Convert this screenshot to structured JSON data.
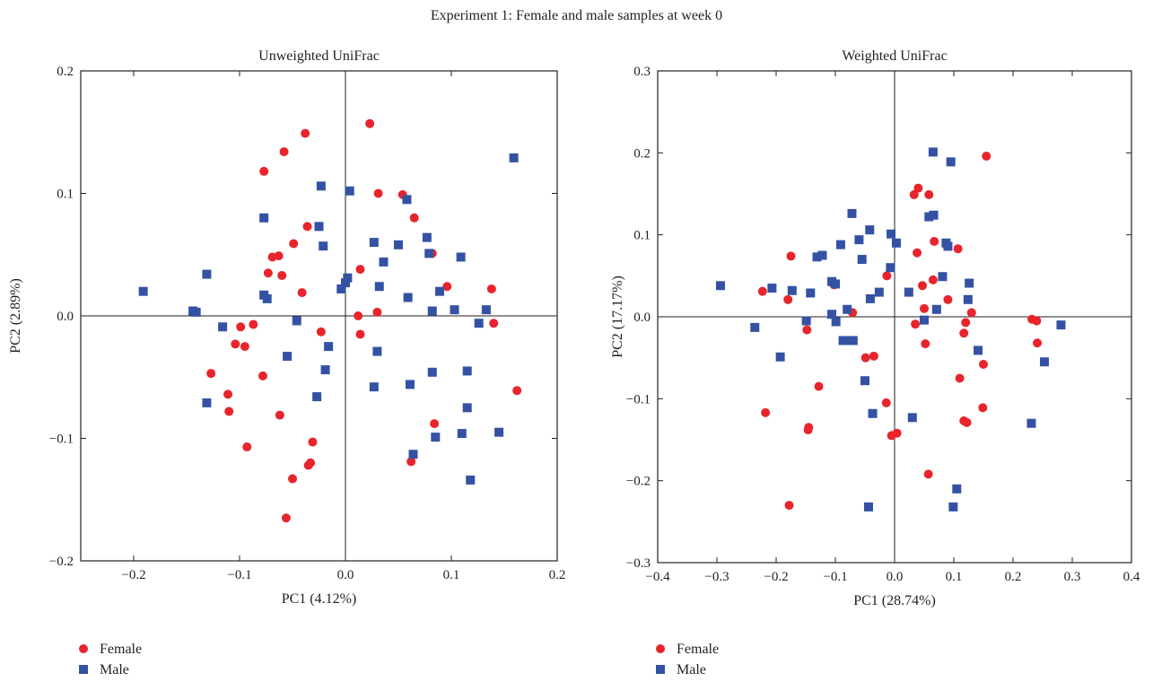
{
  "figure": {
    "title": "Experiment 1: Female and male samples at week 0"
  },
  "colors": {
    "female": "#e8242c",
    "male": "#3452a4"
  },
  "chart_data": [
    {
      "type": "scatter",
      "title": "Unweighted UniFrac",
      "xlabel": "PC1 (4.12%)",
      "ylabel": "PC2 (2.89%)",
      "xlim": [
        -0.25,
        0.2
      ],
      "ylim": [
        -0.2,
        0.2
      ],
      "xticks": [
        -0.2,
        -0.1,
        0.0,
        0.1,
        0.2
      ],
      "yticks": [
        -0.2,
        -0.1,
        0.0,
        0.1,
        0.2
      ],
      "xtick_labels": [
        "−0.2",
        "−0.1",
        "0.0",
        "0.1",
        "0.2"
      ],
      "ytick_labels": [
        "−0.2",
        "−0.1",
        "0.0",
        "0.1",
        "0.2"
      ],
      "legend": [
        "Female",
        "Male"
      ],
      "legend_position": "bottom-left, below plot",
      "series": [
        {
          "name": "Female",
          "marker": "circle",
          "points": [
            [
              0.023,
              0.157
            ],
            [
              -0.038,
              0.149
            ],
            [
              -0.058,
              0.134
            ],
            [
              -0.077,
              0.118
            ],
            [
              0.031,
              0.1
            ],
            [
              0.054,
              0.099
            ],
            [
              0.065,
              0.08
            ],
            [
              -0.036,
              0.073
            ],
            [
              -0.049,
              0.059
            ],
            [
              -0.069,
              0.048
            ],
            [
              -0.063,
              0.049
            ],
            [
              0.082,
              0.051
            ],
            [
              0.014,
              0.038
            ],
            [
              -0.073,
              0.035
            ],
            [
              -0.06,
              0.033
            ],
            [
              0.138,
              0.022
            ],
            [
              0.096,
              0.024
            ],
            [
              -0.041,
              0.019
            ],
            [
              0.03,
              0.003
            ],
            [
              0.012,
              0.0
            ],
            [
              -0.099,
              -0.009
            ],
            [
              -0.087,
              -0.007
            ],
            [
              0.14,
              -0.006
            ],
            [
              -0.104,
              -0.023
            ],
            [
              -0.095,
              -0.025
            ],
            [
              -0.023,
              -0.013
            ],
            [
              0.014,
              -0.015
            ],
            [
              -0.078,
              -0.049
            ],
            [
              -0.127,
              -0.047
            ],
            [
              -0.111,
              -0.064
            ],
            [
              -0.11,
              -0.078
            ],
            [
              -0.062,
              -0.081
            ],
            [
              0.084,
              -0.088
            ],
            [
              -0.031,
              -0.103
            ],
            [
              -0.093,
              -0.107
            ],
            [
              0.062,
              -0.119
            ],
            [
              -0.033,
              -0.12
            ],
            [
              -0.035,
              -0.122
            ],
            [
              -0.05,
              -0.133
            ],
            [
              0.162,
              -0.061
            ],
            [
              -0.056,
              -0.165
            ]
          ]
        },
        {
          "name": "Male",
          "marker": "square",
          "points": [
            [
              0.159,
              0.129
            ],
            [
              -0.023,
              0.106
            ],
            [
              0.004,
              0.102
            ],
            [
              0.058,
              0.095
            ],
            [
              -0.077,
              0.08
            ],
            [
              -0.025,
              0.073
            ],
            [
              0.027,
              0.06
            ],
            [
              -0.021,
              0.057
            ],
            [
              0.05,
              0.058
            ],
            [
              0.077,
              0.064
            ],
            [
              0.079,
              0.051
            ],
            [
              0.109,
              0.048
            ],
            [
              0.036,
              0.044
            ],
            [
              -0.131,
              0.034
            ],
            [
              -0.191,
              0.02
            ],
            [
              -0.077,
              0.017
            ],
            [
              -0.074,
              0.014
            ],
            [
              0.0,
              0.027
            ],
            [
              0.002,
              0.031
            ],
            [
              -0.004,
              0.022
            ],
            [
              0.032,
              0.024
            ],
            [
              0.059,
              0.015
            ],
            [
              0.089,
              0.02
            ],
            [
              -0.144,
              0.004
            ],
            [
              -0.141,
              0.003
            ],
            [
              0.082,
              0.004
            ],
            [
              0.103,
              0.005
            ],
            [
              0.133,
              0.005
            ],
            [
              -0.046,
              -0.004
            ],
            [
              0.126,
              -0.006
            ],
            [
              -0.116,
              -0.009
            ],
            [
              -0.016,
              -0.025
            ],
            [
              -0.055,
              -0.033
            ],
            [
              0.03,
              -0.029
            ],
            [
              -0.019,
              -0.044
            ],
            [
              -0.131,
              -0.071
            ],
            [
              -0.027,
              -0.066
            ],
            [
              0.027,
              -0.058
            ],
            [
              0.061,
              -0.056
            ],
            [
              0.082,
              -0.046
            ],
            [
              0.115,
              -0.045
            ],
            [
              0.115,
              -0.075
            ],
            [
              0.11,
              -0.096
            ],
            [
              0.145,
              -0.095
            ],
            [
              0.085,
              -0.099
            ],
            [
              0.064,
              -0.113
            ],
            [
              0.118,
              -0.134
            ]
          ]
        }
      ]
    },
    {
      "type": "scatter",
      "title": "Weighted UniFrac",
      "xlabel": "PC1 (28.74%)",
      "ylabel": "PC2 (17.17%)",
      "xlim": [
        -0.4,
        0.4
      ],
      "ylim": [
        -0.3,
        0.3
      ],
      "xticks": [
        -0.4,
        -0.3,
        -0.2,
        -0.1,
        0.0,
        0.1,
        0.2,
        0.3,
        0.4
      ],
      "yticks": [
        -0.3,
        -0.2,
        -0.1,
        0.0,
        0.1,
        0.2,
        0.3
      ],
      "xtick_labels": [
        "−0.4",
        "−0.3",
        "−0.2",
        "−0.1",
        "0.0",
        "0.1",
        "0.2",
        "0.3",
        "0.4"
      ],
      "ytick_labels": [
        "−0.3",
        "−0.2",
        "−0.1",
        "0.0",
        "0.1",
        "0.2",
        "0.3"
      ],
      "legend": [
        "Female",
        "Male"
      ],
      "legend_position": "bottom-left, below plot",
      "series": [
        {
          "name": "Female",
          "marker": "circle",
          "points": [
            [
              0.155,
              0.196
            ],
            [
              0.04,
              0.157
            ],
            [
              0.033,
              0.149
            ],
            [
              0.058,
              0.149
            ],
            [
              0.107,
              0.083
            ],
            [
              0.067,
              0.092
            ],
            [
              0.038,
              0.078
            ],
            [
              -0.175,
              0.074
            ],
            [
              -0.223,
              0.031
            ],
            [
              -0.18,
              0.021
            ],
            [
              -0.102,
              0.039
            ],
            [
              0.047,
              0.038
            ],
            [
              0.065,
              0.045
            ],
            [
              -0.013,
              0.05
            ],
            [
              0.09,
              0.021
            ],
            [
              0.05,
              0.01
            ],
            [
              0.13,
              0.005
            ],
            [
              -0.071,
              0.005
            ],
            [
              -0.148,
              -0.016
            ],
            [
              0.035,
              -0.009
            ],
            [
              0.12,
              -0.007
            ],
            [
              0.232,
              -0.003
            ],
            [
              0.24,
              -0.005
            ],
            [
              0.117,
              -0.02
            ],
            [
              0.052,
              -0.033
            ],
            [
              0.241,
              -0.032
            ],
            [
              -0.049,
              -0.05
            ],
            [
              -0.035,
              -0.048
            ],
            [
              0.15,
              -0.058
            ],
            [
              -0.128,
              -0.085
            ],
            [
              0.11,
              -0.075
            ],
            [
              -0.014,
              -0.105
            ],
            [
              -0.218,
              -0.117
            ],
            [
              -0.145,
              -0.135
            ],
            [
              -0.146,
              -0.138
            ],
            [
              0.149,
              -0.111
            ],
            [
              0.117,
              -0.127
            ],
            [
              0.122,
              -0.129
            ],
            [
              0.004,
              -0.142
            ],
            [
              -0.005,
              -0.145
            ],
            [
              0.057,
              -0.192
            ],
            [
              -0.178,
              -0.23
            ]
          ]
        },
        {
          "name": "Male",
          "marker": "square",
          "points": [
            [
              0.065,
              0.201
            ],
            [
              0.095,
              0.189
            ],
            [
              -0.072,
              0.126
            ],
            [
              0.066,
              0.124
            ],
            [
              0.058,
              0.122
            ],
            [
              -0.042,
              0.106
            ],
            [
              -0.006,
              0.101
            ],
            [
              0.003,
              0.09
            ],
            [
              -0.06,
              0.094
            ],
            [
              -0.091,
              0.088
            ],
            [
              0.087,
              0.09
            ],
            [
              0.09,
              0.086
            ],
            [
              -0.131,
              0.073
            ],
            [
              -0.122,
              0.075
            ],
            [
              -0.055,
              0.07
            ],
            [
              -0.007,
              0.06
            ],
            [
              0.081,
              0.049
            ],
            [
              -0.106,
              0.043
            ],
            [
              -0.1,
              0.04
            ],
            [
              0.126,
              0.041
            ],
            [
              -0.207,
              0.035
            ],
            [
              -0.173,
              0.032
            ],
            [
              -0.142,
              0.029
            ],
            [
              -0.041,
              0.022
            ],
            [
              -0.026,
              0.03
            ],
            [
              0.024,
              0.03
            ],
            [
              -0.294,
              0.038
            ],
            [
              0.124,
              0.021
            ],
            [
              -0.106,
              0.003
            ],
            [
              -0.08,
              0.009
            ],
            [
              0.071,
              0.009
            ],
            [
              -0.099,
              -0.006
            ],
            [
              -0.149,
              -0.005
            ],
            [
              0.05,
              -0.004
            ],
            [
              -0.236,
              -0.013
            ],
            [
              -0.087,
              -0.029
            ],
            [
              -0.075,
              -0.029
            ],
            [
              -0.07,
              -0.029
            ],
            [
              0.141,
              -0.041
            ],
            [
              0.281,
              -0.01
            ],
            [
              -0.193,
              -0.049
            ],
            [
              -0.05,
              -0.078
            ],
            [
              0.253,
              -0.055
            ],
            [
              -0.037,
              -0.118
            ],
            [
              0.03,
              -0.123
            ],
            [
              0.231,
              -0.13
            ],
            [
              0.105,
              -0.21
            ],
            [
              0.099,
              -0.232
            ],
            [
              -0.044,
              -0.232
            ]
          ]
        }
      ]
    }
  ]
}
